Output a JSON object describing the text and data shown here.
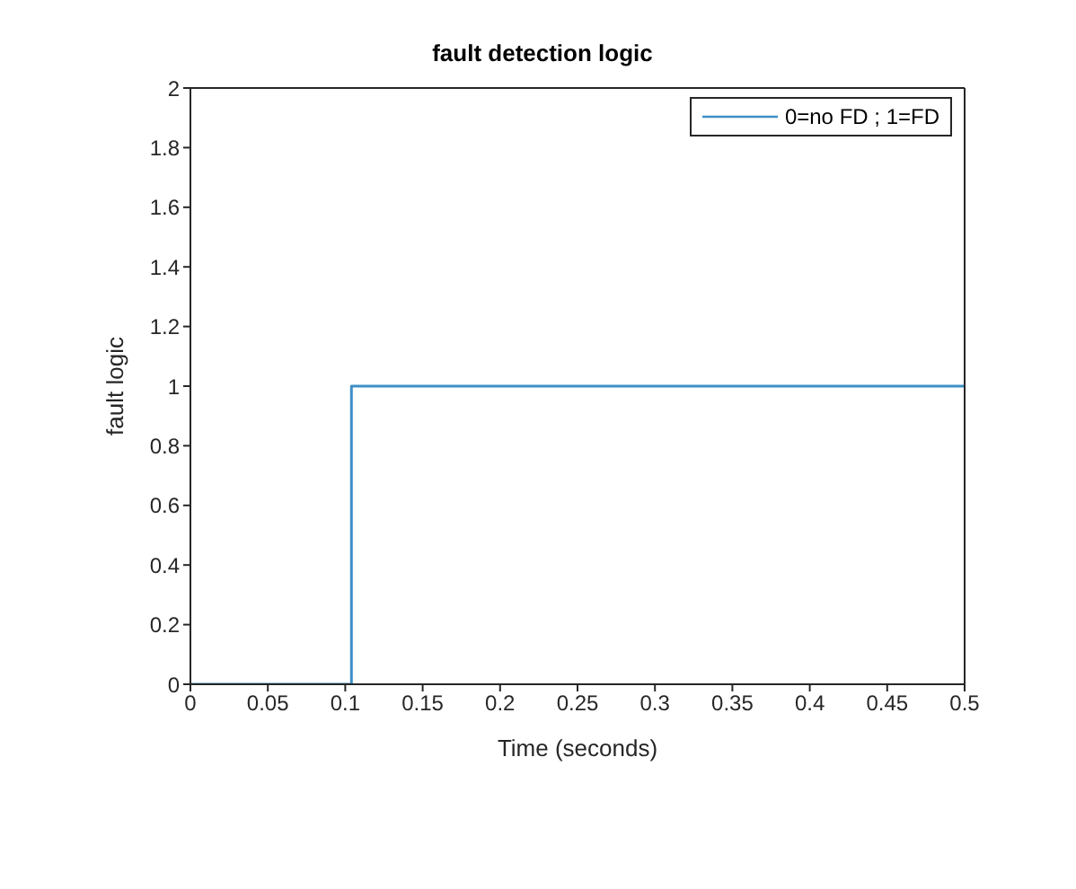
{
  "chart_data": {
    "type": "step",
    "title": "fault detection logic",
    "xlabel": "Time (seconds)",
    "ylabel": "fault logic",
    "x": [
      0,
      0.104,
      0.5
    ],
    "series": [
      {
        "name": "0=no FD ; 1=FD",
        "color": "#3d8fc6",
        "values": [
          0,
          1,
          1
        ]
      }
    ],
    "xlim": [
      0,
      0.5
    ],
    "xticks": [
      0,
      0.05,
      0.1,
      0.15,
      0.2,
      0.25,
      0.3,
      0.35,
      0.4,
      0.45,
      0.5
    ],
    "ylim": [
      0,
      2
    ],
    "yticks": [
      0,
      0.2,
      0.4,
      0.6,
      0.8,
      1,
      1.2,
      1.4,
      1.6,
      1.8,
      2
    ],
    "grid": false,
    "legend": "top right",
    "marker": "none",
    "line_style": "solid"
  }
}
